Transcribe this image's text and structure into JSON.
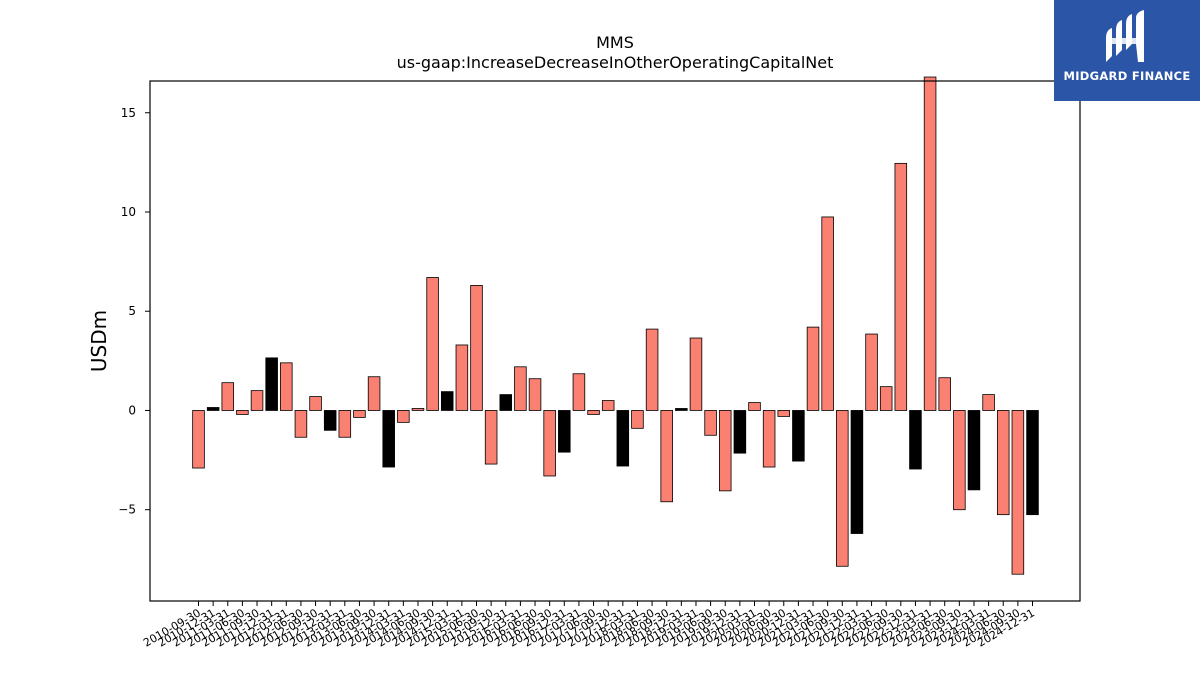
{
  "logo": {
    "text": "MIDGARD FINANCE",
    "background": "#2b55a6"
  },
  "chart_data": {
    "type": "bar",
    "title": "MMS",
    "subtitle": "us-gaap:IncreaseDecreaseInOtherOperatingCapitalNet",
    "xlabel": "",
    "ylabel": "USDm",
    "ylim": [
      -9.6,
      16.6
    ],
    "yticks": [
      -5,
      0,
      5,
      10,
      15
    ],
    "ytick_labels": [
      "−5",
      "0",
      "5",
      "10",
      "15"
    ],
    "grid": false,
    "colors": {
      "positive_quarter": "#fa8072",
      "highlight": "#000000",
      "edge": "#000000"
    },
    "categories": [
      "2010-09-30",
      "2010-12-31",
      "2011-03-31",
      "2011-06-30",
      "2011-09-30",
      "2011-12-31",
      "2012-03-31",
      "2012-06-30",
      "2012-09-30",
      "2012-12-31",
      "2013-03-31",
      "2013-06-30",
      "2013-09-30",
      "2013-12-31",
      "2014-03-31",
      "2014-06-30",
      "2014-09-30",
      "2014-12-31",
      "2015-03-31",
      "2015-06-30",
      "2015-09-30",
      "2015-12-31",
      "2016-03-31",
      "2016-06-30",
      "2016-09-30",
      "2016-12-31",
      "2017-03-31",
      "2017-06-30",
      "2017-09-30",
      "2017-12-31",
      "2018-03-31",
      "2018-06-30",
      "2018-09-30",
      "2018-12-31",
      "2019-03-31",
      "2019-06-30",
      "2019-09-30",
      "2019-12-31",
      "2020-03-31",
      "2020-06-30",
      "2020-09-30",
      "2020-12-31",
      "2021-03-31",
      "2021-06-30",
      "2021-09-30",
      "2021-12-31",
      "2022-03-31",
      "2022-06-30",
      "2022-09-30",
      "2022-12-31",
      "2023-03-31",
      "2023-06-30",
      "2023-09-30",
      "2023-12-31",
      "2024-03-31",
      "2024-06-30",
      "2024-09-30",
      "2024-12-31"
    ],
    "values": [
      -2.9,
      0.15,
      1.4,
      -0.2,
      1.0,
      2.65,
      2.4,
      -1.35,
      0.7,
      -1.0,
      -1.35,
      -0.35,
      1.7,
      -2.85,
      -0.6,
      0.1,
      6.7,
      0.95,
      3.3,
      6.3,
      -2.7,
      0.8,
      2.2,
      1.6,
      -3.3,
      -2.1,
      1.85,
      -0.2,
      0.5,
      -2.8,
      -0.9,
      4.1,
      -4.6,
      0.1,
      3.65,
      -1.25,
      -4.05,
      -2.15,
      0.4,
      -2.85,
      -0.3,
      -2.55,
      4.2,
      9.75,
      -7.85,
      -6.2,
      3.85,
      1.2,
      12.45,
      -2.95,
      16.8,
      1.65,
      -5.0,
      -4.0,
      0.8,
      -5.25,
      -8.25,
      -5.25
    ],
    "highlight": [
      false,
      true,
      false,
      false,
      false,
      true,
      false,
      false,
      false,
      true,
      false,
      false,
      false,
      true,
      false,
      false,
      false,
      true,
      false,
      false,
      false,
      true,
      false,
      false,
      false,
      true,
      false,
      false,
      false,
      true,
      false,
      false,
      false,
      true,
      false,
      false,
      false,
      true,
      false,
      false,
      false,
      true,
      false,
      false,
      false,
      true,
      false,
      false,
      false,
      true,
      false,
      false,
      false,
      true,
      false,
      false,
      false,
      true
    ]
  }
}
